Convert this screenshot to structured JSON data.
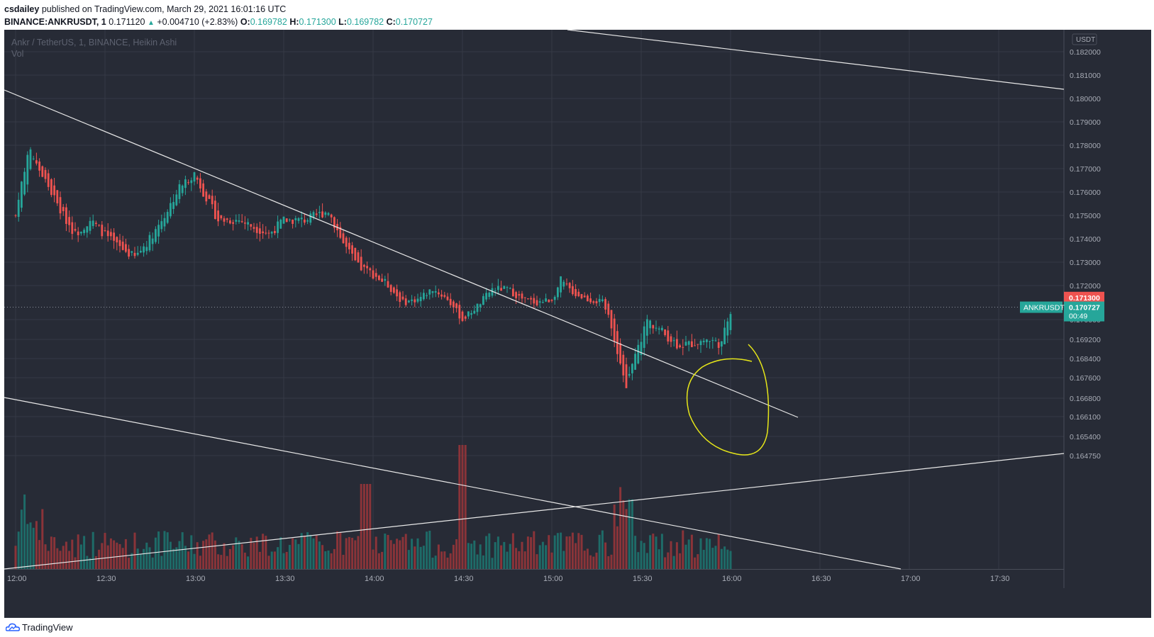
{
  "header": {
    "user": "csdailey",
    "published_text": " published on TradingView.com, March 29, 2021 16:01:16 UTC"
  },
  "ohlc": {
    "symbol": "BINANCE:ANKRUSDT, 1",
    "last": "0.171120",
    "change": "+0.004710 (+2.83%)",
    "o_label": "O:",
    "o": "0.169782",
    "h_label": "H:",
    "h": "0.171300",
    "l_label": "L:",
    "l": "0.169782",
    "c_label": "C:",
    "c": "0.170727"
  },
  "legend": {
    "title": "Ankr / TetherUS, 1, BINANCE, Heikin Ashi",
    "vol": "Vol"
  },
  "footer": {
    "brand": "TradingView"
  },
  "colors": {
    "bg": "#272b36",
    "grid": "#363a45",
    "up": "#26a69a",
    "down": "#ef5350",
    "vol_up": "#1e6b68",
    "vol_down": "#8a3439",
    "trendline": "#e8e8e8",
    "annotation": "#e6e619",
    "text_axis": "#a8acb6"
  },
  "chart_data": {
    "type": "candlestick",
    "style": "Heikin Ashi",
    "currency": "USDT",
    "y_ticks": [
      0.182,
      0.181,
      0.18,
      0.179,
      0.178,
      0.177,
      0.176,
      0.175,
      0.174,
      0.173,
      0.172,
      0.17,
      0.1692,
      0.1684,
      0.1676,
      0.1668,
      0.1661,
      0.1654,
      0.16475
    ],
    "y_tick_labels": [
      "0.182000",
      "0.181000",
      "0.180000",
      "0.179000",
      "0.178000",
      "0.177000",
      "0.176000",
      "0.175000",
      "0.174000",
      "0.173000",
      "0.172000",
      "0.170000",
      "0.169200",
      "0.168400",
      "0.167600",
      "0.166800",
      "0.166100",
      "0.165400",
      "0.164750"
    ],
    "x_labels": [
      "12:00",
      "12:30",
      "13:00",
      "13:30",
      "14:00",
      "14:30",
      "15:00",
      "15:30",
      "16:00",
      "16:30",
      "17:00",
      "17:30"
    ],
    "price_markers": [
      {
        "label": "0.171300",
        "value": 0.1713,
        "color": "#ef5350"
      },
      {
        "label": "0.170727",
        "value": 0.170727,
        "color": "#26a69a",
        "countdown": "00:49",
        "symbol_tag": "ANKRUSDT"
      }
    ],
    "close_series_hint": [
      [
        "12:00",
        0.175
      ],
      [
        "12:03",
        0.177
      ],
      [
        "12:05",
        0.1778
      ],
      [
        "12:10",
        0.1765
      ],
      [
        "12:15",
        0.1752
      ],
      [
        "12:20",
        0.1742
      ],
      [
        "12:25",
        0.1748
      ],
      [
        "12:33",
        0.1738
      ],
      [
        "12:40",
        0.1732
      ],
      [
        "12:45",
        0.174
      ],
      [
        "12:50",
        0.175
      ],
      [
        "12:55",
        0.1762
      ],
      [
        "13:00",
        0.1768
      ],
      [
        "13:03",
        0.176
      ],
      [
        "13:08",
        0.1748
      ],
      [
        "13:15",
        0.1748
      ],
      [
        "13:20",
        0.1745
      ],
      [
        "13:25",
        0.1742
      ],
      [
        "13:30",
        0.1748
      ],
      [
        "13:37",
        0.1748
      ],
      [
        "13:45",
        0.1752
      ],
      [
        "13:50",
        0.1738
      ],
      [
        "13:55",
        0.1728
      ],
      [
        "14:00",
        0.1725
      ],
      [
        "14:05",
        0.172
      ],
      [
        "14:10",
        0.171
      ],
      [
        "14:15",
        0.1712
      ],
      [
        "14:20",
        0.1718
      ],
      [
        "14:25",
        0.1712
      ],
      [
        "14:30",
        0.17
      ],
      [
        "14:35",
        0.1708
      ],
      [
        "14:40",
        0.1718
      ],
      [
        "14:45",
        0.1718
      ],
      [
        "14:50",
        0.1712
      ],
      [
        "14:55",
        0.171
      ],
      [
        "15:00",
        0.1712
      ],
      [
        "15:03",
        0.1722
      ],
      [
        "15:08",
        0.1715
      ],
      [
        "15:12",
        0.1712
      ],
      [
        "15:17",
        0.171
      ],
      [
        "15:20",
        0.1698
      ],
      [
        "15:23",
        0.1682
      ],
      [
        "15:25",
        0.1672
      ],
      [
        "15:28",
        0.1685
      ],
      [
        "15:32",
        0.17
      ],
      [
        "15:37",
        0.1695
      ],
      [
        "15:42",
        0.169
      ],
      [
        "15:46",
        0.169
      ],
      [
        "15:52",
        0.1692
      ],
      [
        "15:57",
        0.169
      ],
      [
        "16:00",
        0.1705
      ]
    ]
  }
}
